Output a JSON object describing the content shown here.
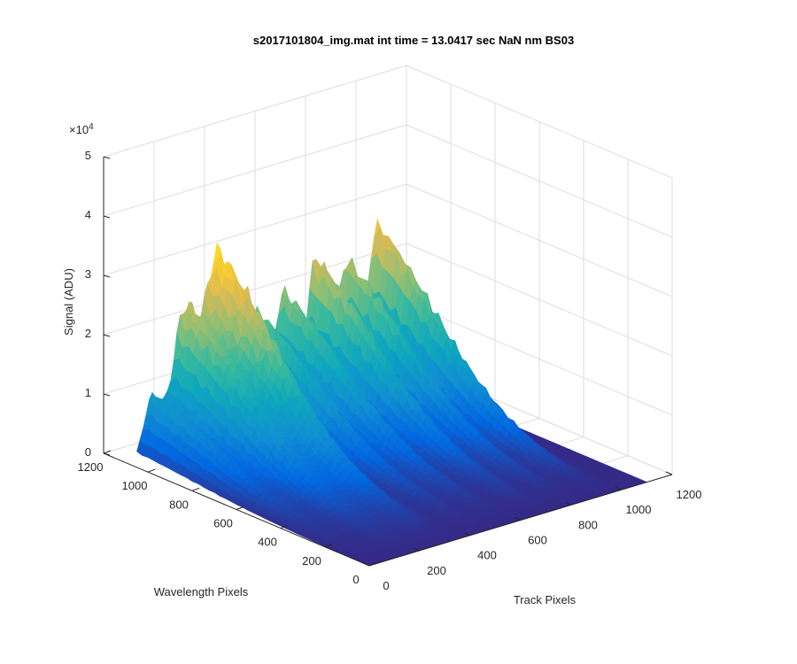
{
  "chart_data": {
    "type": "surface",
    "title": "s2017101804_img.mat int time = 13.0417 sec  NaN nm BS03",
    "xlabel": "Track Pixels",
    "ylabel": "Wavelength Pixels",
    "zlabel": "Signal (ADU)",
    "z_exponent_label": "×10",
    "z_exponent_power": "4",
    "xlim": [
      0,
      1200
    ],
    "ylim": [
      0,
      1200
    ],
    "zlim": [
      0,
      50000
    ],
    "x_ticks": [
      "0",
      "200",
      "400",
      "600",
      "800",
      "1000",
      "1200"
    ],
    "y_ticks": [
      "0",
      "200",
      "400",
      "600",
      "800",
      "1000",
      "1200"
    ],
    "z_ticks": [
      "0",
      "1",
      "2",
      "3",
      "4",
      "5"
    ],
    "grid": true,
    "colormap": "parula",
    "colormap_colors": [
      "#352a87",
      "#0268e1",
      "#108ed2",
      "#0fa7bd",
      "#38b99e",
      "#92bf73",
      "#d9ba56",
      "#fcce2e",
      "#f9fb0e"
    ],
    "data_extent": {
      "track_pixels": [
        0,
        1100
      ],
      "wavelength_pixels": [
        0,
        1050
      ]
    },
    "peaks": [
      {
        "track_center": 60,
        "track_width": 55,
        "peak_signal": 11000
      },
      {
        "track_center": 190,
        "track_width": 75,
        "peak_signal": 25000
      },
      {
        "track_center": 320,
        "track_width": 75,
        "peak_signal": 33000
      },
      {
        "track_center": 470,
        "track_width": 50,
        "peak_signal": 21000
      },
      {
        "track_center": 580,
        "track_width": 55,
        "peak_signal": 23000
      },
      {
        "track_center": 710,
        "track_width": 60,
        "peak_signal": 27000
      },
      {
        "track_center": 830,
        "track_width": 50,
        "peak_signal": 25000
      },
      {
        "track_center": 950,
        "track_width": 55,
        "peak_signal": 30000
      }
    ]
  }
}
